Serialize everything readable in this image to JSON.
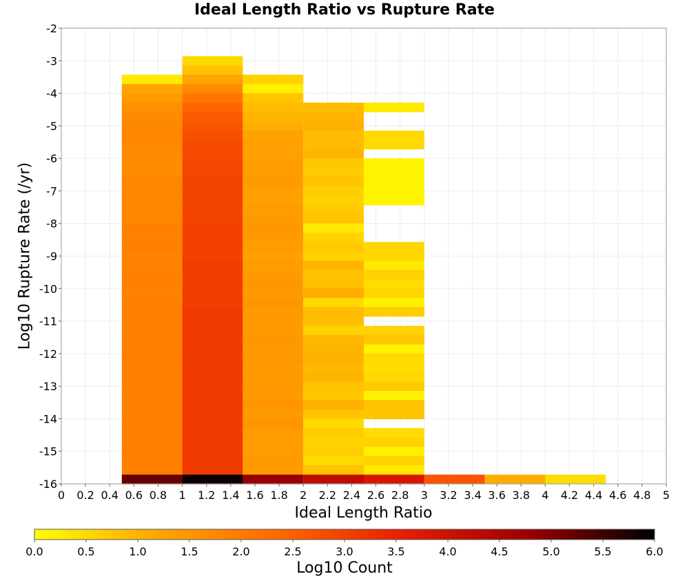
{
  "chart_data": {
    "type": "heatmap",
    "title": "Ideal Length Ratio vs Rupture Rate",
    "xlabel": "Ideal Length Ratio",
    "ylabel": "Log10 Rupture Rate (/yr)",
    "colorbar_label": "Log10 Count",
    "xlim": [
      0,
      5
    ],
    "ylim": [
      -16,
      -2
    ],
    "x_ticks": [
      "0",
      "0.2",
      "0.4",
      "0.6",
      "0.8",
      "1",
      "1.2",
      "1.4",
      "1.6",
      "1.8",
      "2",
      "2.2",
      "2.4",
      "2.6",
      "2.8",
      "3",
      "3.2",
      "3.4",
      "3.6",
      "3.8",
      "4",
      "4.2",
      "4.4",
      "4.6",
      "4.8",
      "5"
    ],
    "y_ticks": [
      "-2",
      "-3",
      "-4",
      "-5",
      "-6",
      "-7",
      "-8",
      "-9",
      "-10",
      "-11",
      "-12",
      "-13",
      "-14",
      "-15",
      "-16"
    ],
    "colorbar_ticks": [
      "0.0",
      "0.5",
      "1.0",
      "1.5",
      "2.0",
      "2.5",
      "3.0",
      "3.5",
      "4.0",
      "4.5",
      "5.0",
      "5.5",
      "6.0"
    ],
    "colorbar_range": [
      0,
      6
    ],
    "colormap": [
      "#ffff00",
      "#ffa500",
      "#ff6600",
      "#e51c00",
      "#9a0000",
      "#000000"
    ],
    "grid": true,
    "y_bin_width": 0.2857,
    "x_bins": [
      {
        "x": [
          0.5,
          1.0
        ],
        "cells": [
          [
            -3.57,
            0.3
          ],
          [
            -3.86,
            1.2
          ],
          [
            -4.14,
            1.4
          ],
          [
            -4.43,
            1.6
          ],
          [
            -4.71,
            1.7
          ],
          [
            -5.0,
            1.8
          ],
          [
            -5.29,
            1.8
          ],
          [
            -5.57,
            1.75
          ],
          [
            -5.86,
            1.7
          ],
          [
            -6.14,
            1.7
          ],
          [
            -6.43,
            1.7
          ],
          [
            -6.71,
            1.8
          ],
          [
            -7.0,
            1.8
          ],
          [
            -7.29,
            1.8
          ],
          [
            -7.57,
            1.8
          ],
          [
            -7.86,
            1.8
          ],
          [
            -8.14,
            1.9
          ],
          [
            -8.43,
            1.85
          ],
          [
            -8.71,
            1.9
          ],
          [
            -9.0,
            1.85
          ],
          [
            -9.29,
            1.85
          ],
          [
            -9.57,
            1.9
          ],
          [
            -9.86,
            1.9
          ],
          [
            -10.14,
            1.85
          ],
          [
            -10.43,
            1.9
          ],
          [
            -10.71,
            1.9
          ],
          [
            -11.0,
            1.9
          ],
          [
            -11.29,
            1.9
          ],
          [
            -11.57,
            1.9
          ],
          [
            -11.86,
            1.9
          ],
          [
            -12.14,
            1.95
          ],
          [
            -12.43,
            1.9
          ],
          [
            -12.71,
            1.9
          ],
          [
            -13.0,
            1.9
          ],
          [
            -13.29,
            1.9
          ],
          [
            -13.57,
            1.9
          ],
          [
            -13.86,
            1.9
          ],
          [
            -14.14,
            1.9
          ],
          [
            -14.43,
            1.9
          ],
          [
            -14.71,
            1.9
          ],
          [
            -15.0,
            1.95
          ],
          [
            -15.29,
            1.9
          ],
          [
            -15.57,
            1.9
          ],
          [
            -15.86,
            5.2
          ]
        ]
      },
      {
        "x": [
          1.0,
          1.5
        ],
        "cells": [
          [
            -3.0,
            0.5
          ],
          [
            -3.29,
            0.8
          ],
          [
            -3.57,
            1.2
          ],
          [
            -3.86,
            1.7
          ],
          [
            -4.14,
            2.1
          ],
          [
            -4.43,
            2.4
          ],
          [
            -4.71,
            2.6
          ],
          [
            -5.0,
            2.7
          ],
          [
            -5.29,
            2.75
          ],
          [
            -5.57,
            2.85
          ],
          [
            -5.86,
            2.85
          ],
          [
            -6.14,
            2.9
          ],
          [
            -6.43,
            2.9
          ],
          [
            -6.71,
            2.95
          ],
          [
            -7.0,
            2.95
          ],
          [
            -7.29,
            2.95
          ],
          [
            -7.57,
            2.95
          ],
          [
            -7.86,
            2.95
          ],
          [
            -8.14,
            3.0
          ],
          [
            -8.43,
            3.0
          ],
          [
            -8.71,
            3.0
          ],
          [
            -9.0,
            3.0
          ],
          [
            -9.29,
            3.05
          ],
          [
            -9.57,
            3.05
          ],
          [
            -9.86,
            3.05
          ],
          [
            -10.14,
            3.05
          ],
          [
            -10.43,
            3.05
          ],
          [
            -10.71,
            3.1
          ],
          [
            -11.0,
            3.1
          ],
          [
            -11.29,
            3.1
          ],
          [
            -11.57,
            3.1
          ],
          [
            -11.86,
            3.1
          ],
          [
            -12.14,
            3.1
          ],
          [
            -12.43,
            3.1
          ],
          [
            -12.71,
            3.1
          ],
          [
            -13.0,
            3.1
          ],
          [
            -13.29,
            3.1
          ],
          [
            -13.57,
            3.1
          ],
          [
            -13.86,
            3.1
          ],
          [
            -14.14,
            3.1
          ],
          [
            -14.43,
            3.1
          ],
          [
            -14.71,
            3.1
          ],
          [
            -15.0,
            3.1
          ],
          [
            -15.29,
            3.1
          ],
          [
            -15.57,
            3.1
          ],
          [
            -15.86,
            5.9
          ]
        ]
      },
      {
        "x": [
          1.5,
          2.0
        ],
        "cells": [
          [
            -3.57,
            0.6
          ],
          [
            -3.86,
            0.2
          ],
          [
            -4.14,
            0.8
          ],
          [
            -4.43,
            0.9
          ],
          [
            -4.71,
            1.0
          ],
          [
            -5.0,
            1.1
          ],
          [
            -5.29,
            1.25
          ],
          [
            -5.57,
            1.3
          ],
          [
            -5.86,
            1.3
          ],
          [
            -6.14,
            1.35
          ],
          [
            -6.43,
            1.35
          ],
          [
            -6.71,
            1.4
          ],
          [
            -7.0,
            1.3
          ],
          [
            -7.29,
            1.3
          ],
          [
            -7.57,
            1.35
          ],
          [
            -7.86,
            1.4
          ],
          [
            -8.14,
            1.45
          ],
          [
            -8.43,
            1.4
          ],
          [
            -8.71,
            1.35
          ],
          [
            -9.0,
            1.3
          ],
          [
            -9.29,
            1.35
          ],
          [
            -9.57,
            1.4
          ],
          [
            -9.86,
            1.45
          ],
          [
            -10.14,
            1.4
          ],
          [
            -10.43,
            1.5
          ],
          [
            -10.71,
            1.4
          ],
          [
            -11.0,
            1.4
          ],
          [
            -11.29,
            1.4
          ],
          [
            -11.57,
            1.45
          ],
          [
            -11.86,
            1.4
          ],
          [
            -12.14,
            1.45
          ],
          [
            -12.43,
            1.4
          ],
          [
            -12.71,
            1.4
          ],
          [
            -13.0,
            1.45
          ],
          [
            -13.29,
            1.4
          ],
          [
            -13.57,
            1.55
          ],
          [
            -13.86,
            1.4
          ],
          [
            -14.14,
            1.5
          ],
          [
            -14.43,
            1.4
          ],
          [
            -14.71,
            1.35
          ],
          [
            -15.0,
            1.35
          ],
          [
            -15.29,
            1.4
          ],
          [
            -15.57,
            1.4
          ],
          [
            -15.86,
            4.8
          ]
        ]
      },
      {
        "x": [
          2.0,
          2.5
        ],
        "cells": [
          [
            -4.43,
            0.9
          ],
          [
            -4.71,
            1.0
          ],
          [
            -5.0,
            1.05
          ],
          [
            -5.29,
            0.9
          ],
          [
            -5.57,
            0.9
          ],
          [
            -5.86,
            1.0
          ],
          [
            -6.14,
            0.75
          ],
          [
            -6.43,
            0.7
          ],
          [
            -6.71,
            0.8
          ],
          [
            -7.0,
            0.65
          ],
          [
            -7.29,
            0.6
          ],
          [
            -7.57,
            0.7
          ],
          [
            -7.86,
            0.8
          ],
          [
            -8.14,
            0.3
          ],
          [
            -8.43,
            0.6
          ],
          [
            -8.71,
            0.7
          ],
          [
            -9.0,
            0.6
          ],
          [
            -9.29,
            1.0
          ],
          [
            -9.57,
            0.8
          ],
          [
            -9.86,
            0.85
          ],
          [
            -10.14,
            1.1
          ],
          [
            -10.43,
            0.5
          ],
          [
            -10.71,
            0.9
          ],
          [
            -11.0,
            0.85
          ],
          [
            -11.29,
            0.6
          ],
          [
            -11.57,
            0.95
          ],
          [
            -11.86,
            1.0
          ],
          [
            -12.14,
            1.05
          ],
          [
            -12.43,
            0.95
          ],
          [
            -12.71,
            1.0
          ],
          [
            -13.0,
            0.8
          ],
          [
            -13.29,
            0.75
          ],
          [
            -13.57,
            1.05
          ],
          [
            -13.86,
            0.8
          ],
          [
            -14.14,
            0.5
          ],
          [
            -14.43,
            0.7
          ],
          [
            -14.71,
            0.6
          ],
          [
            -15.0,
            0.65
          ],
          [
            -15.29,
            0.5
          ],
          [
            -15.57,
            0.8
          ],
          [
            -15.86,
            4.2
          ]
        ]
      },
      {
        "x": [
          2.5,
          3.0
        ],
        "cells": [
          [
            -4.43,
            0.3
          ],
          [
            -5.29,
            0.5
          ],
          [
            -5.57,
            0.5
          ],
          [
            -6.14,
            0.15
          ],
          [
            -6.43,
            0.15
          ],
          [
            -6.71,
            0.15
          ],
          [
            -7.0,
            0.15
          ],
          [
            -7.29,
            0.15
          ],
          [
            -8.71,
            0.55
          ],
          [
            -9.0,
            0.55
          ],
          [
            -9.29,
            0.3
          ],
          [
            -9.57,
            0.6
          ],
          [
            -9.86,
            0.45
          ],
          [
            -10.14,
            0.55
          ],
          [
            -10.43,
            0.2
          ],
          [
            -10.71,
            0.65
          ],
          [
            -11.29,
            0.6
          ],
          [
            -11.57,
            0.75
          ],
          [
            -11.86,
            0.15
          ],
          [
            -12.14,
            0.5
          ],
          [
            -12.43,
            0.45
          ],
          [
            -12.71,
            0.5
          ],
          [
            -13.0,
            0.7
          ],
          [
            -13.29,
            0.2
          ],
          [
            -13.57,
            0.8
          ],
          [
            -13.86,
            0.8
          ],
          [
            -14.43,
            0.45
          ],
          [
            -14.71,
            0.6
          ],
          [
            -15.0,
            0.2
          ],
          [
            -15.29,
            0.6
          ],
          [
            -15.57,
            0.3
          ],
          [
            -15.86,
            3.8
          ]
        ]
      },
      {
        "x": [
          3.0,
          3.5
        ],
        "cells": [
          [
            -15.86,
            2.7
          ]
        ]
      },
      {
        "x": [
          3.5,
          4.0
        ],
        "cells": [
          [
            -15.86,
            1.1
          ]
        ]
      },
      {
        "x": [
          4.0,
          4.5
        ],
        "cells": [
          [
            -15.86,
            0.45
          ]
        ]
      }
    ]
  }
}
